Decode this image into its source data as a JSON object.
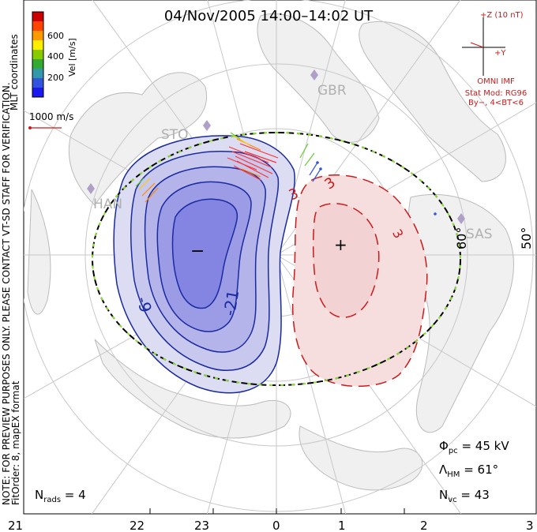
{
  "title": "04/Nov/2005 14:00–14:02 UT",
  "colorbar": {
    "axis_label": "Vel [m/s]",
    "ticks": [
      "600",
      "400",
      "200"
    ],
    "colors": [
      "#cc0000",
      "#ff4400",
      "#ff9900",
      "#ffee00",
      "#88cc00",
      "#33aa33",
      "#3399aa",
      "#3355dd",
      "#1a1aee"
    ]
  },
  "coordinates_label": "MLT coordinates",
  "scale_vector_label": "1000 m/s",
  "vertical_note": "NOTE: FOR PREVIEW PURPOSES ONLY. PLEASE CONTACT VT-SD STAFF FOR VERIFICATION.",
  "fitorder_label": "FitOrder: 8, mapEX format",
  "imf": {
    "z_label": "+Z (10 nT)",
    "y_label": "+Y",
    "source": "OMNI IMF",
    "model": "Stat Mod: RG96",
    "condition": "By−, 4<BT<6"
  },
  "stations": [
    "GBR",
    "STO",
    "HAN",
    "SAS"
  ],
  "lat_labels": [
    "60°",
    "50°"
  ],
  "contours": {
    "neg_labels": [
      "-9",
      "-21"
    ],
    "pos_labels": [
      "3",
      "3",
      "3"
    ],
    "min_marker": "−",
    "max_marker": "+"
  },
  "stats": {
    "phi_symbol": "Φ",
    "phi_sub": "pc",
    "phi_value": " = 45 kV",
    "lambda_symbol": "Λ",
    "lambda_sub": "HM",
    "lambda_value": " = 61°",
    "nvc_symbol": "N",
    "nvc_sub": "vc",
    "nvc_value": " = 43",
    "nrads_symbol": "N",
    "nrads_sub": "rads",
    "nrads_value": " = 4"
  },
  "mlt_ticks": [
    "21",
    "22",
    "23",
    "0",
    "1",
    "2",
    "3"
  ]
}
